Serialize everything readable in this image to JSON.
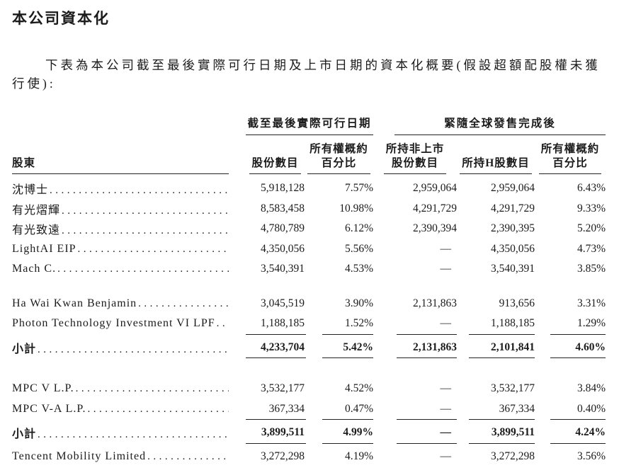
{
  "page": {
    "title": "本公司資本化",
    "intro_line1": "下表為本公司截至最後實際可行日期及上市日期的資本化概要(假設超額配股權未獲",
    "intro_line2": "行使):"
  },
  "table": {
    "group_headers": [
      {
        "label": "截至最後實際可行日期"
      },
      {
        "label": "緊隨全球發售完成後"
      }
    ],
    "shareholder_header": "股東",
    "columns": [
      {
        "line1": "",
        "line2": "股份數目"
      },
      {
        "line1": "所有權概約",
        "line2": "百分比"
      },
      {
        "line1": "所持非上市",
        "line2": "股份數目"
      },
      {
        "line1": "",
        "line2": "所持H股數目"
      },
      {
        "line1": "所有權概約",
        "line2": "百分比"
      }
    ],
    "sections": [
      {
        "rows": [
          {
            "name": "沈博士",
            "values": [
              "5,918,128",
              "7.57%",
              "2,959,064",
              "2,959,064",
              "6.43%"
            ]
          },
          {
            "name": "有光熠輝",
            "values": [
              "8,583,458",
              "10.98%",
              "4,291,729",
              "4,291,729",
              "9.33%"
            ]
          },
          {
            "name": "有光致遠",
            "values": [
              "4,780,789",
              "6.12%",
              "2,390,394",
              "2,390,395",
              "5.20%"
            ]
          },
          {
            "name": "LightAI EIP",
            "values": [
              "4,350,056",
              "5.56%",
              "—",
              "4,350,056",
              "4.73%"
            ]
          },
          {
            "name": "Mach C.",
            "values": [
              "3,540,391",
              "4.53%",
              "—",
              "3,540,391",
              "3.85%"
            ]
          }
        ]
      },
      {
        "rows": [
          {
            "name": "Ha Wai Kwan Benjamin",
            "values": [
              "3,045,519",
              "3.90%",
              "2,131,863",
              "913,656",
              "3.31%"
            ]
          },
          {
            "name": "Photon Technology Investment VI LPF",
            "values": [
              "1,188,185",
              "1.52%",
              "—",
              "1,188,185",
              "1.29%"
            ]
          }
        ],
        "subtotal": {
          "name": "小計",
          "values": [
            "4,233,704",
            "5.42%",
            "2,131,863",
            "2,101,841",
            "4.60%"
          ]
        }
      },
      {
        "rows": [
          {
            "name": "MPC V L.P.",
            "values": [
              "3,532,177",
              "4.52%",
              "—",
              "3,532,177",
              "3.84%"
            ]
          },
          {
            "name": "MPC V-A L.P.",
            "values": [
              "367,334",
              "0.47%",
              "—",
              "367,334",
              "0.40%"
            ]
          }
        ],
        "subtotal": {
          "name": "小計",
          "values": [
            "3,899,511",
            "4.99%",
            "—",
            "3,899,511",
            "4.24%"
          ]
        }
      },
      {
        "rows": [
          {
            "name": "Tencent Mobility Limited",
            "values": [
              "3,272,298",
              "4.19%",
              "—",
              "3,272,298",
              "3.56%"
            ]
          }
        ]
      }
    ]
  }
}
